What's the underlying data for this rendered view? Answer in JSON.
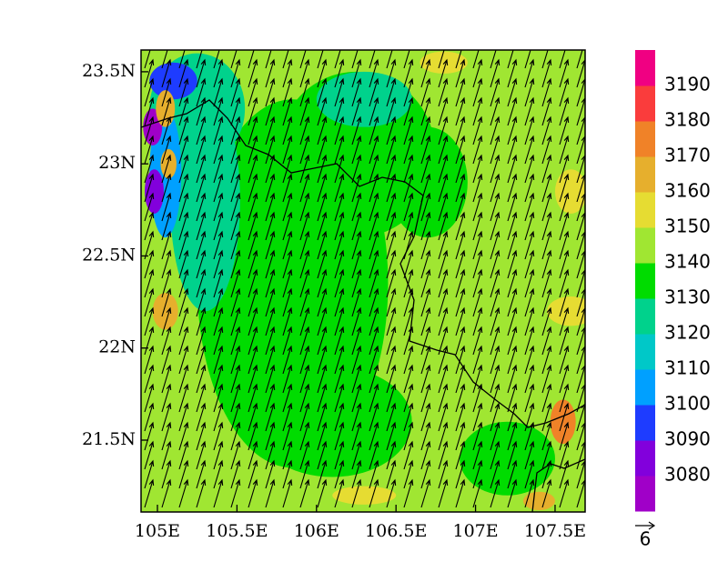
{
  "map": {
    "xlim": [
      104.897,
      107.689
    ],
    "ylim": [
      21.11,
      23.618
    ],
    "xticks": [
      {
        "value": 105,
        "label": "105E"
      },
      {
        "value": 105.5,
        "label": "105.5E"
      },
      {
        "value": 106,
        "label": "106E"
      },
      {
        "value": 106.5,
        "label": "106.5E"
      },
      {
        "value": 107,
        "label": "107E"
      },
      {
        "value": 107.5,
        "label": "107.5E"
      }
    ],
    "yticks": [
      {
        "value": 21.5,
        "label": "21.5N"
      },
      {
        "value": 22,
        "label": "22N"
      },
      {
        "value": 22.5,
        "label": "22.5N"
      },
      {
        "value": 23,
        "label": "23N"
      },
      {
        "value": 23.5,
        "label": "23.5N"
      }
    ],
    "colorbar": {
      "levels": [
        3080,
        3090,
        3100,
        3110,
        3120,
        3130,
        3140,
        3150,
        3160,
        3170,
        3180,
        3190
      ],
      "colors": [
        "#a000c8",
        "#8200dc",
        "#1e3cff",
        "#00a0ff",
        "#00c8c8",
        "#00d28c",
        "#00dc00",
        "#a0e632",
        "#e6dc32",
        "#e6af2d",
        "#f08228",
        "#fa3c3c",
        "#f00082"
      ]
    },
    "reference_vector": 6
  }
}
